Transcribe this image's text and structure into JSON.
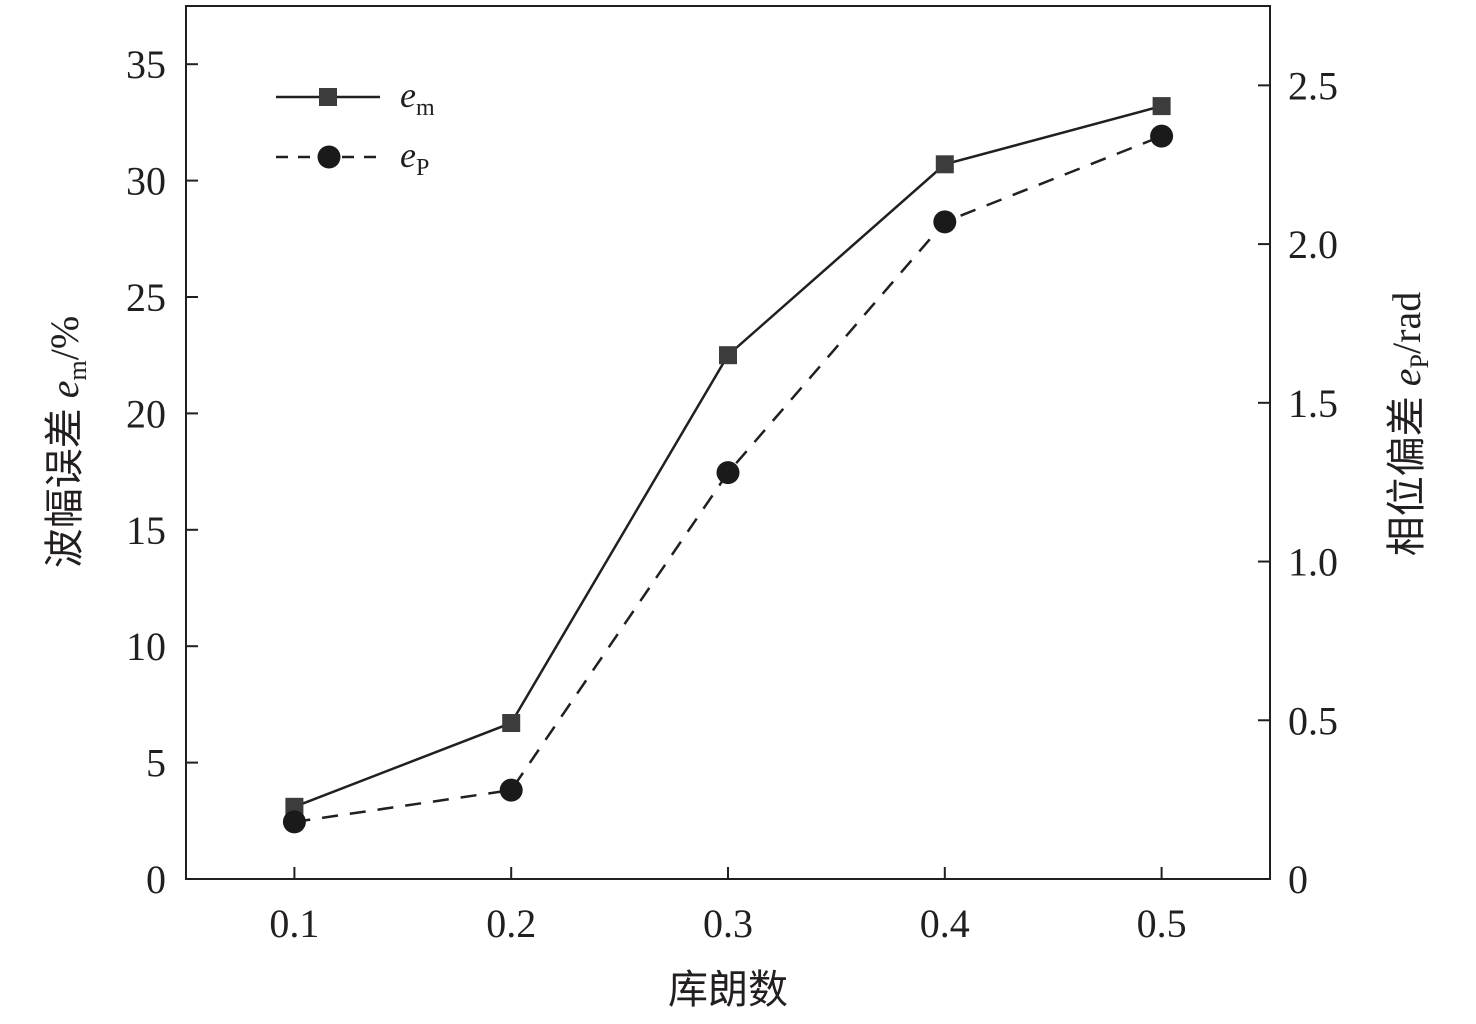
{
  "chart_data": {
    "type": "line",
    "xlabel": "库朗数",
    "ylabel_left": {
      "prefix": "波幅误差 ",
      "var": "e",
      "sub": "m",
      "suffix": "/%"
    },
    "ylabel_right": {
      "prefix": "相位偏差 ",
      "var": "e",
      "sub": "P",
      "suffix": "/rad"
    },
    "x": [
      0.1,
      0.2,
      0.3,
      0.4,
      0.5
    ],
    "x_ticks": [
      "0.1",
      "0.2",
      "0.3",
      "0.4",
      "0.5"
    ],
    "xlim": [
      0.05,
      0.55
    ],
    "ylim_left": [
      0,
      37.5
    ],
    "y_ticks_left": [
      "0",
      "5",
      "10",
      "15",
      "20",
      "25",
      "30",
      "35"
    ],
    "ylim_right": [
      0,
      2.75
    ],
    "y_ticks_right": [
      "0",
      "0.5",
      "1.0",
      "1.5",
      "2.0",
      "2.5"
    ],
    "grid": false,
    "legend_position": "top-left",
    "series": [
      {
        "name_var": "e",
        "name_sub": "m",
        "axis": "left",
        "marker": "square",
        "line_style": "solid",
        "color": "#3c3c3c",
        "values": [
          3.1,
          6.7,
          22.5,
          30.7,
          33.2
        ]
      },
      {
        "name_var": "e",
        "name_sub": "P",
        "axis": "right",
        "marker": "circle",
        "line_style": "dashed",
        "color": "#1a1a1a",
        "values": [
          0.18,
          0.28,
          1.28,
          2.07,
          2.34
        ]
      }
    ]
  }
}
